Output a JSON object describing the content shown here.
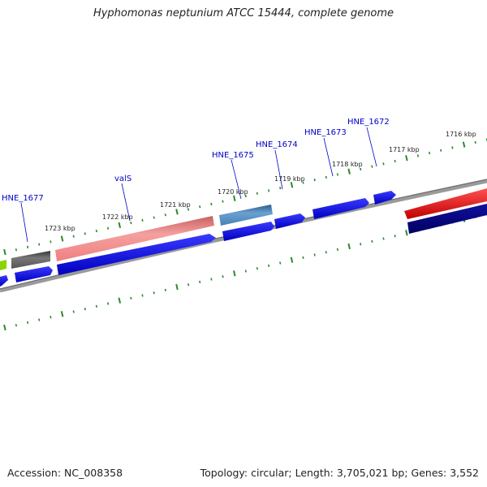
{
  "title": "Hyphomonas neptunium ATCC 15444, complete genome",
  "footer": {
    "accession": "Accession: NC_008358",
    "summary": "Topology: circular; Length: 3,705,021 bp; Genes: 3,552"
  },
  "ticks": [
    "1716 kbp",
    "1717 kbp",
    "1718 kbp",
    "1719 kbp",
    "1720 kbp",
    "1721 kbp",
    "1722 kbp",
    "1723 kbp"
  ],
  "gene_labels": [
    "HNE_1672",
    "HNE_1673",
    "HNE_1674",
    "HNE_1675",
    "valS",
    "HNE_1677"
  ],
  "colors": {
    "backbone": "#8a8a8a",
    "tick_marks": "#2a8a2a",
    "label_text": "#0000c8",
    "gene_blue": "#0000ee",
    "gene_navy": "#000080",
    "gene_red": "#ee0000",
    "gene_pink": "#f08080",
    "gene_gray": "#555555",
    "gene_steel": "#4682b4",
    "gene_green": "#7cc400"
  }
}
